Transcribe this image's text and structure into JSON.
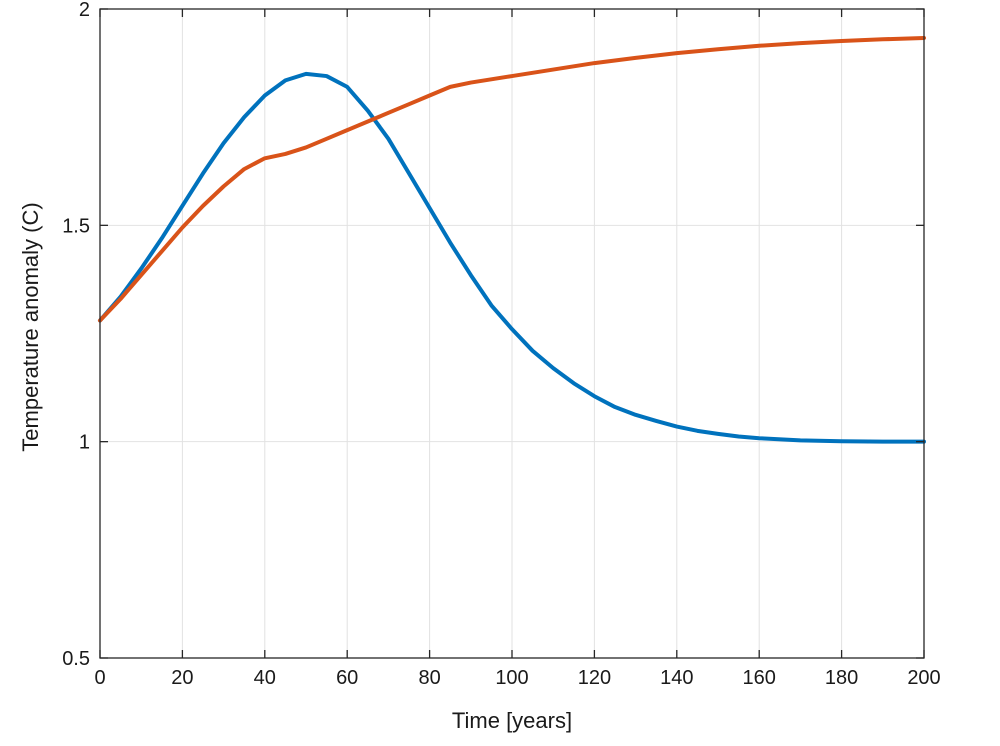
{
  "chart_data": {
    "type": "line",
    "title": "",
    "xlabel": "Time [years]",
    "ylabel": "Temperature anomaly (C)",
    "xlim": [
      0,
      200
    ],
    "ylim": [
      0.5,
      2
    ],
    "xticks": [
      0,
      20,
      40,
      60,
      80,
      100,
      120,
      140,
      160,
      180,
      200
    ],
    "yticks": [
      0.5,
      1,
      1.5,
      2
    ],
    "grid": true,
    "series": [
      {
        "color": "#0072BD",
        "x": [
          0,
          5,
          10,
          15,
          20,
          25,
          30,
          35,
          40,
          45,
          50,
          55,
          60,
          65,
          70,
          75,
          80,
          85,
          90,
          95,
          100,
          105,
          110,
          115,
          120,
          125,
          130,
          135,
          140,
          145,
          150,
          155,
          160,
          170,
          180,
          190,
          200
        ],
        "values": [
          1.28,
          1.335,
          1.4,
          1.47,
          1.545,
          1.62,
          1.69,
          1.75,
          1.8,
          1.835,
          1.85,
          1.845,
          1.82,
          1.765,
          1.7,
          1.62,
          1.54,
          1.46,
          1.385,
          1.315,
          1.26,
          1.21,
          1.17,
          1.135,
          1.105,
          1.08,
          1.062,
          1.048,
          1.035,
          1.025,
          1.018,
          1.012,
          1.008,
          1.003,
          1.001,
          1.0,
          1.0
        ]
      },
      {
        "color": "#D95319",
        "x": [
          0,
          5,
          10,
          15,
          20,
          25,
          30,
          35,
          40,
          45,
          50,
          55,
          60,
          65,
          70,
          75,
          80,
          85,
          90,
          100,
          110,
          120,
          130,
          140,
          150,
          160,
          170,
          180,
          190,
          200
        ],
        "values": [
          1.28,
          1.33,
          1.385,
          1.44,
          1.495,
          1.545,
          1.59,
          1.63,
          1.655,
          1.665,
          1.68,
          1.7,
          1.72,
          1.74,
          1.76,
          1.78,
          1.8,
          1.82,
          1.83,
          1.845,
          1.86,
          1.875,
          1.887,
          1.898,
          1.907,
          1.915,
          1.921,
          1.926,
          1.93,
          1.933
        ]
      }
    ]
  }
}
